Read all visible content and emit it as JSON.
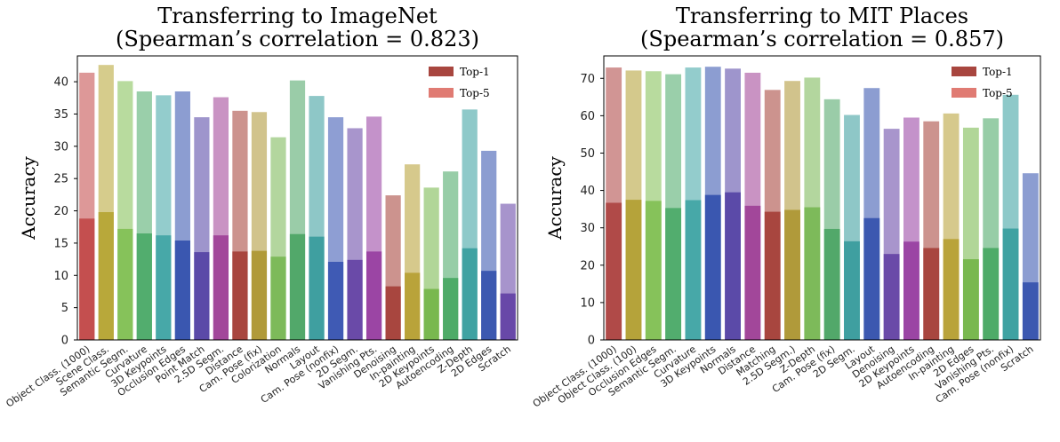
{
  "chart_data": [
    {
      "type": "bar",
      "title_line1": "Transferring to ImageNet",
      "title_line2": "(Spearman’s correlation = 0.823)",
      "ylabel": "Accuracy",
      "ylim": [
        0,
        44
      ],
      "yticks": [
        0,
        5,
        10,
        15,
        20,
        25,
        30,
        35,
        40
      ],
      "legend": [
        "Top-1",
        "Top-5"
      ],
      "legend_colors": [
        "#a8463f",
        "#e07b73"
      ],
      "categories": [
        "Object Class. (1000)",
        "Scene Class.",
        "Semantic Segm.",
        "Curvature",
        "3D Keypoints",
        "Occlusion Edges",
        "Point Match",
        "2.5D Segm.",
        "Distance",
        "Cam. Pose (fix)",
        "Colorization",
        "Normals",
        "Layout",
        "Cam. Pose (nonfix)",
        "2D Segm.",
        "Vanishing Pts.",
        "Denoising",
        "In-painting",
        "2D Keypoints",
        "Autoencoding",
        "Z-Depth",
        "2D Edges",
        "Scratch"
      ],
      "series": [
        {
          "name": "Top-1",
          "values": [
            18.8,
            19.8,
            17.2,
            16.5,
            16.2,
            15.4,
            13.6,
            16.2,
            13.7,
            13.8,
            12.9,
            16.4,
            16.0,
            12.1,
            12.4,
            13.7,
            8.3,
            10.4,
            7.9,
            9.6,
            14.2,
            10.7,
            7.2
          ]
        },
        {
          "name": "Top-5",
          "values": [
            41.4,
            42.6,
            40.1,
            38.5,
            37.9,
            38.5,
            34.5,
            37.6,
            35.5,
            35.3,
            31.4,
            40.2,
            37.8,
            34.5,
            32.8,
            34.6,
            22.4,
            27.2,
            23.6,
            26.1,
            35.7,
            29.3,
            21.1
          ]
        }
      ],
      "colors": [
        "#c44f4f",
        "#b8a83a",
        "#86c25a",
        "#52ad6e",
        "#47a8a8",
        "#3a57b0",
        "#5b4aa8",
        "#a2479a",
        "#a8463f",
        "#b09a3a",
        "#7dba5a",
        "#52a86a",
        "#3f9fa0",
        "#3f5ab4",
        "#6a4aa8",
        "#9b45a4",
        "#a8463f",
        "#b9a33a",
        "#79b84f",
        "#4eab68",
        "#3fa2a2",
        "#3c58b0",
        "#6848a8"
      ]
    },
    {
      "type": "bar",
      "title_line1": "Transferring to MIT Places",
      "title_line2": "(Spearman’s correlation = 0.857)",
      "ylabel": "Accuracy",
      "ylim": [
        0,
        76
      ],
      "yticks": [
        0,
        10,
        20,
        30,
        40,
        50,
        60,
        70
      ],
      "legend": [
        "Top-1",
        "Top-5"
      ],
      "legend_colors": [
        "#a8463f",
        "#e07b73"
      ],
      "categories": [
        "Object Class. (1000)",
        "Object Class. (100)",
        "Occlusion Edges",
        "Semantic Segm.",
        "Curvature",
        "3D Keypoints",
        "Normals",
        "Distance",
        "Matching",
        "2.5D Segm.)",
        "Z-Depth",
        "Cam. Pose (fix)",
        "2D Segm.",
        "Layout",
        "Denoising",
        "2D Keypoints",
        "Autoencoding",
        "In-painting",
        "2D Edges",
        "Vanishing Pts.",
        "Cam. Pose (nonfix)",
        "Scratch"
      ],
      "series": [
        {
          "name": "Top-1",
          "values": [
            36.7,
            37.5,
            37.2,
            35.3,
            37.4,
            38.8,
            39.5,
            35.9,
            34.3,
            34.8,
            35.5,
            29.7,
            26.4,
            32.6,
            23.0,
            26.3,
            24.6,
            27.0,
            21.6,
            24.6,
            29.8,
            15.4
          ]
        },
        {
          "name": "Top-5",
          "values": [
            72.9,
            72.1,
            71.9,
            71.1,
            72.9,
            73.1,
            72.6,
            71.5,
            66.9,
            69.3,
            70.2,
            64.4,
            60.2,
            67.4,
            56.5,
            59.5,
            58.5,
            60.6,
            56.8,
            59.3,
            65.6,
            44.6
          ]
        }
      ],
      "colors": [
        "#b04a48",
        "#b5a33a",
        "#86c25a",
        "#52ad6e",
        "#47a8a8",
        "#3a57b0",
        "#5b4aa8",
        "#a2479a",
        "#a8463f",
        "#b09a3a",
        "#7dba5a",
        "#52a86a",
        "#3f9fa0",
        "#3c58b0",
        "#6a4aa8",
        "#9b45a4",
        "#a8463f",
        "#b9a33a",
        "#79b84f",
        "#4eab68",
        "#3fa2a2",
        "#3c58b0"
      ]
    }
  ]
}
